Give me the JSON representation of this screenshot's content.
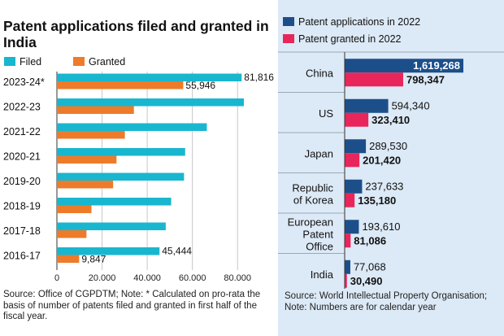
{
  "colors": {
    "filed": "#19b6cf",
    "granted": "#ee7b2a",
    "apps2022": "#1c4f8a",
    "granted2022": "#e8265c",
    "panel": "#dce9f6"
  },
  "chart_data": [
    {
      "type": "bar",
      "orientation": "horizontal",
      "title": "Patent applications filed and granted in India",
      "categories": [
        "2023-24*",
        "2022-23",
        "2021-22",
        "2020-21",
        "2019-20",
        "2018-19",
        "2017-18",
        "2016-17"
      ],
      "series": [
        {
          "name": "Filed",
          "values": [
            81816,
            82800,
            66400,
            56800,
            56300,
            50600,
            48200,
            45444
          ]
        },
        {
          "name": "Granted",
          "values": [
            55946,
            34100,
            30100,
            26400,
            24900,
            15300,
            13100,
            9847
          ]
        }
      ],
      "data_labels": [
        {
          "series": 0,
          "index": 0,
          "text": "81,816"
        },
        {
          "series": 1,
          "index": 0,
          "text": "55,946"
        },
        {
          "series": 0,
          "index": 7,
          "text": "45,444"
        },
        {
          "series": 1,
          "index": 7,
          "text": "9,847"
        }
      ],
      "xlim": [
        0,
        90000
      ],
      "xticks": [
        0,
        20000,
        40000,
        60000,
        80000
      ],
      "xtick_labels": [
        "0",
        "20,000",
        "40,000",
        "60,000",
        "80,000"
      ],
      "grid": true,
      "legend": "top-left",
      "source": "Source: Office of CGPDTM; Note: * Calculated on pro-rata the basis of number of patents filed and granted in first half of the fiscal year."
    },
    {
      "type": "bar",
      "orientation": "horizontal",
      "title": "",
      "categories": [
        "China",
        "US",
        "Japan",
        "Republic of Korea",
        "European Patent Office",
        "India"
      ],
      "category_lines": [
        [
          "China"
        ],
        [
          "US"
        ],
        [
          "Japan"
        ],
        [
          "Republic",
          "of Korea"
        ],
        [
          "European",
          "Patent",
          "Office"
        ],
        [
          "India"
        ]
      ],
      "series": [
        {
          "name": "Patent applications in 2022",
          "values": [
            1619268,
            594340,
            289530,
            237633,
            193610,
            77068
          ],
          "labels": [
            "1,619,268",
            "594,340",
            "289,530",
            "237,633",
            "193,610",
            "77,068"
          ]
        },
        {
          "name": "Patent granted in 2022",
          "values": [
            798347,
            323410,
            201420,
            135180,
            81086,
            30490
          ],
          "labels": [
            "798,347",
            "323,410",
            "201,420",
            "135,180",
            "81,086",
            "30,490"
          ]
        }
      ],
      "xlim": [
        0,
        1619268
      ],
      "legend": "top-left",
      "source": "Source: World Intellectual Property Organisation; Note: Numbers are for calendar year"
    }
  ]
}
